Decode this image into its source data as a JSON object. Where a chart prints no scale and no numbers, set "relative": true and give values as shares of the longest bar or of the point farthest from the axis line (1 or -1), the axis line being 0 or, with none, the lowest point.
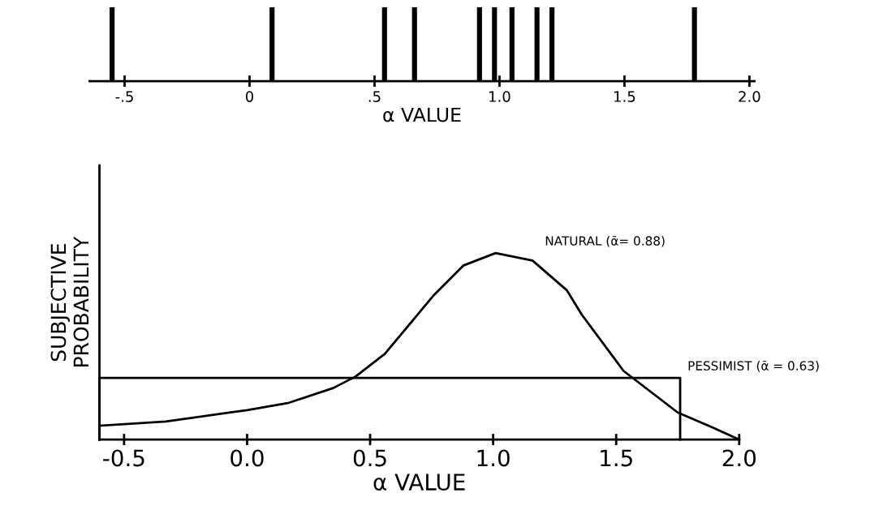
{
  "chart_data": [
    {
      "type": "bar",
      "relative": true,
      "xlabel": "α VALUE",
      "x": [
        -0.55,
        0.09,
        0.54,
        0.66,
        0.92,
        0.98,
        1.05,
        1.15,
        1.21,
        1.78
      ],
      "values": [
        1,
        1,
        1,
        1,
        1,
        1,
        1,
        1,
        1,
        1
      ],
      "color": "#000000",
      "xlim": [
        -0.64,
        2.02
      ],
      "xticks": [
        {
          "value": -0.5,
          "label": "-.5"
        },
        {
          "value": 0,
          "label": "0"
        },
        {
          "value": 0.5,
          "label": ".5"
        },
        {
          "value": 1,
          "label": "1.0"
        },
        {
          "value": 1.5,
          "label": "1.5"
        },
        {
          "value": 2,
          "label": "2.0"
        }
      ],
      "grid": false,
      "legend": false
    },
    {
      "type": "line",
      "relative": true,
      "xlabel": "α VALUE",
      "ylabel": "SUBJECTIVE\nPROBABILITY",
      "series": [
        {
          "name": "NATURAL (ᾱ= 0.88)",
          "color": "#000000",
          "x": [
            -0.6,
            -0.33,
            0.0,
            0.17,
            0.35,
            0.44,
            0.56,
            0.76,
            0.88,
            1.01,
            1.16,
            1.3,
            1.36,
            1.53,
            1.75,
            1.89,
            2.0
          ],
          "values": [
            0.074,
            0.097,
            0.158,
            0.197,
            0.276,
            0.337,
            0.46,
            0.776,
            0.934,
            1.0,
            0.96,
            0.8,
            0.67,
            0.368,
            0.145,
            0.066,
            0.0
          ]
        },
        {
          "name": "PESSIMIST (ᾱ = 0.63)",
          "color": "#000000",
          "x": [
            -0.6,
            -0.6,
            1.76,
            1.76
          ],
          "values": [
            0,
            0.33,
            0.33,
            0
          ]
        }
      ],
      "xlim": [
        -0.6,
        2.0
      ],
      "xticks": [
        {
          "value": -0.5,
          "label": "-0.5"
        },
        {
          "value": 0,
          "label": "0.0"
        },
        {
          "value": 0.5,
          "label": "0.5"
        },
        {
          "value": 1,
          "label": "1.0"
        },
        {
          "value": 1.5,
          "label": "1.5"
        },
        {
          "value": 2,
          "label": "2.0"
        }
      ],
      "grid": false,
      "legend": false,
      "marker": "none",
      "line_style": "solid"
    }
  ]
}
